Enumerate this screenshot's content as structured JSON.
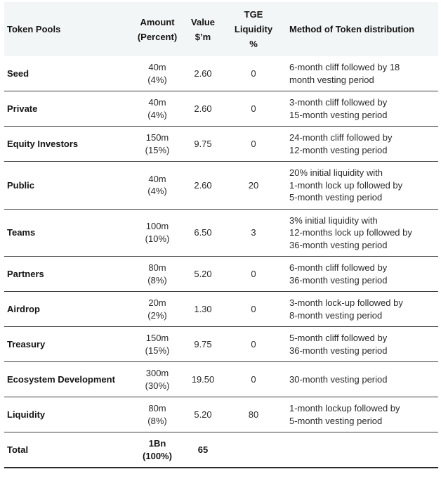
{
  "table": {
    "title_semantic": "token-distribution-table",
    "colors": {
      "header_bg": "#f3f6f7",
      "row_line": "#3c3c3c",
      "bottom_line": "#2a2a2a",
      "text": "#2a2a2a",
      "bold_text": "#151515",
      "page_bg": "#ffffff"
    },
    "columns": [
      {
        "label": "Token Pools",
        "align": "left"
      },
      {
        "label": "Amount\n(Percent)",
        "align": "center"
      },
      {
        "label": "Value\n$’m",
        "align": "center"
      },
      {
        "label": "TGE\nLiquidity\n%",
        "align": "center"
      },
      {
        "label": "Method of Token distribution",
        "align": "left"
      }
    ],
    "rows": [
      {
        "pool": "Seed",
        "amount": "40m\n(4%)",
        "value": "2.60",
        "tge": "0",
        "method": "6-month cliff followed by 18\nmonth vesting period"
      },
      {
        "pool": "Private",
        "amount": "40m\n(4%)",
        "value": "2.60",
        "tge": "0",
        "method": "3-month cliff followed by\n15-month vesting period"
      },
      {
        "pool": "Equity Investors",
        "amount": "150m\n(15%)",
        "value": "9.75",
        "tge": "0",
        "method": "24-month cliff followed by\n12-month vesting period"
      },
      {
        "pool": "Public",
        "amount": "40m\n(4%)",
        "value": "2.60",
        "tge": "20",
        "method": "20% initial liquidity with\n1-month lock up followed by\n5-month vesting period"
      },
      {
        "pool": "Teams",
        "amount": "100m\n(10%)",
        "value": "6.50",
        "tge": "3",
        "method": "3% initial liquidity with\n12-months lock up followed by\n36-month vesting period"
      },
      {
        "pool": "Partners",
        "amount": "80m\n(8%)",
        "value": "5.20",
        "tge": "0",
        "method": "6-month cliff followed by\n36-month vesting period"
      },
      {
        "pool": "Airdrop",
        "amount": "20m\n(2%)",
        "value": "1.30",
        "tge": "0",
        "method": "3-month lock-up followed by\n8-month vesting period"
      },
      {
        "pool": "Treasury",
        "amount": "150m\n(15%)",
        "value": "9.75",
        "tge": "0",
        "method": "5-month cliff followed by\n36-month vesting period"
      },
      {
        "pool": "Ecosystem Development",
        "amount": "300m\n(30%)",
        "value": "19.50",
        "tge": "0",
        "method": "30-month vesting period"
      },
      {
        "pool": "Liquidity",
        "amount": "80m\n(8%)",
        "value": "5.20",
        "tge": "80",
        "method": "1-month lockup followed by\n5-month vesting period"
      }
    ],
    "total_row": {
      "pool": "Total",
      "amount": "1Bn\n(100%)",
      "value": "65",
      "tge": "",
      "method": ""
    }
  }
}
